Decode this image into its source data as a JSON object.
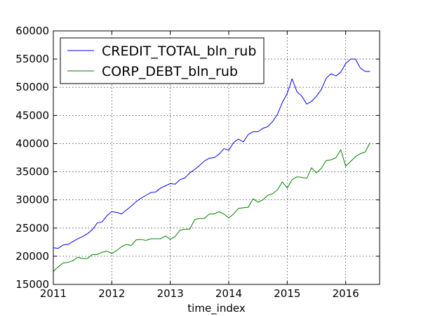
{
  "chart_data": {
    "type": "line",
    "title": "",
    "xlabel": "time_index",
    "ylabel": "",
    "xlim": [
      2011.0,
      2016.58
    ],
    "ylim": [
      15000,
      60000
    ],
    "x_ticks": [
      2011,
      2012,
      2013,
      2014,
      2015,
      2016
    ],
    "x_tick_labels": [
      "2011",
      "2012",
      "2013",
      "2014",
      "2015",
      "2016"
    ],
    "y_ticks": [
      15000,
      20000,
      25000,
      30000,
      35000,
      40000,
      45000,
      50000,
      55000,
      60000
    ],
    "y_tick_labels": [
      "15000",
      "20000",
      "25000",
      "30000",
      "35000",
      "40000",
      "45000",
      "50000",
      "55000",
      "60000"
    ],
    "grid": true,
    "legend_position": "upper-left",
    "x": [
      "2011-01",
      "2011-02",
      "2011-03",
      "2011-04",
      "2011-05",
      "2011-06",
      "2011-07",
      "2011-08",
      "2011-09",
      "2011-10",
      "2011-11",
      "2011-12",
      "2012-01",
      "2012-02",
      "2012-03",
      "2012-04",
      "2012-05",
      "2012-06",
      "2012-07",
      "2012-08",
      "2012-09",
      "2012-10",
      "2012-11",
      "2012-12",
      "2013-01",
      "2013-02",
      "2013-03",
      "2013-04",
      "2013-05",
      "2013-06",
      "2013-07",
      "2013-08",
      "2013-09",
      "2013-10",
      "2013-11",
      "2013-12",
      "2014-01",
      "2014-02",
      "2014-03",
      "2014-04",
      "2014-05",
      "2014-06",
      "2014-07",
      "2014-08",
      "2014-09",
      "2014-10",
      "2014-11",
      "2014-12",
      "2015-01",
      "2015-02",
      "2015-03",
      "2015-04",
      "2015-05",
      "2015-06",
      "2015-07",
      "2015-08",
      "2015-09",
      "2015-10",
      "2015-11",
      "2015-12",
      "2016-01",
      "2016-02",
      "2016-03",
      "2016-04",
      "2016-05",
      "2016-06"
    ],
    "series": [
      {
        "name": "CREDIT_TOTAL_bln_rub",
        "color": "#0000ff",
        "values": [
          21500,
          21400,
          22000,
          22100,
          22600,
          23100,
          23500,
          24000,
          24700,
          25900,
          26100,
          27200,
          27900,
          27800,
          27500,
          28200,
          28900,
          29700,
          30300,
          30800,
          31300,
          31400,
          32100,
          32500,
          32900,
          32800,
          33600,
          33900,
          34800,
          35400,
          36100,
          36900,
          37400,
          37500,
          38100,
          39100,
          38800,
          40200,
          40800,
          40300,
          41600,
          42100,
          42100,
          42700,
          43000,
          43900,
          45200,
          47300,
          48900,
          51500,
          49200,
          48400,
          47000,
          47500,
          48400,
          49600,
          51600,
          52400,
          52000,
          52700,
          54200,
          55000,
          55000,
          53400,
          52800,
          52800
        ]
      },
      {
        "name": "CORP_DEBT_bln_rub",
        "color": "#008000",
        "values": [
          17300,
          18100,
          18800,
          18900,
          19200,
          19800,
          19600,
          19600,
          20300,
          20300,
          20700,
          20900,
          20500,
          21000,
          21700,
          22100,
          21900,
          22900,
          23000,
          22800,
          23100,
          23100,
          23100,
          23600,
          23000,
          23500,
          24600,
          24800,
          24800,
          26500,
          26700,
          26700,
          27500,
          27500,
          27900,
          27500,
          26800,
          27500,
          28500,
          28600,
          28700,
          30200,
          29600,
          30000,
          30800,
          31100,
          31800,
          33200,
          32100,
          33600,
          34100,
          34000,
          33800,
          35700,
          34800,
          35600,
          37000,
          37100,
          37500,
          38900,
          36000,
          36800,
          37700,
          38200,
          38500,
          40200
        ]
      }
    ]
  }
}
